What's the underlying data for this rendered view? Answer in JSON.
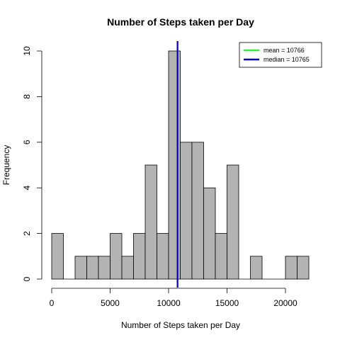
{
  "chart_data": {
    "type": "bar",
    "title": "Number of Steps taken per Day",
    "xlabel": "Number of Steps taken per Day",
    "ylabel": "Frequency",
    "bin_width": 1000,
    "bin_start": 0,
    "values": [
      2,
      0,
      1,
      1,
      1,
      2,
      1,
      2,
      5,
      2,
      10,
      6,
      6,
      4,
      2,
      5,
      0,
      1,
      0,
      0,
      1,
      1
    ],
    "x_ticks": [
      0,
      5000,
      10000,
      15000,
      20000
    ],
    "y_ticks": [
      0,
      2,
      4,
      6,
      8,
      10
    ],
    "xlim": [
      0,
      22000
    ],
    "ylim": [
      0,
      10
    ],
    "bar_color": "#b3b3b3",
    "grid": false,
    "legend_position": "top-right",
    "reference_lines": [
      {
        "label": "mean = ",
        "value": 10766,
        "value_label": "10766",
        "color": "#33ee33"
      },
      {
        "label": "median = ",
        "value": 10765,
        "value_label": "10765",
        "color": "#0000cc"
      }
    ]
  }
}
